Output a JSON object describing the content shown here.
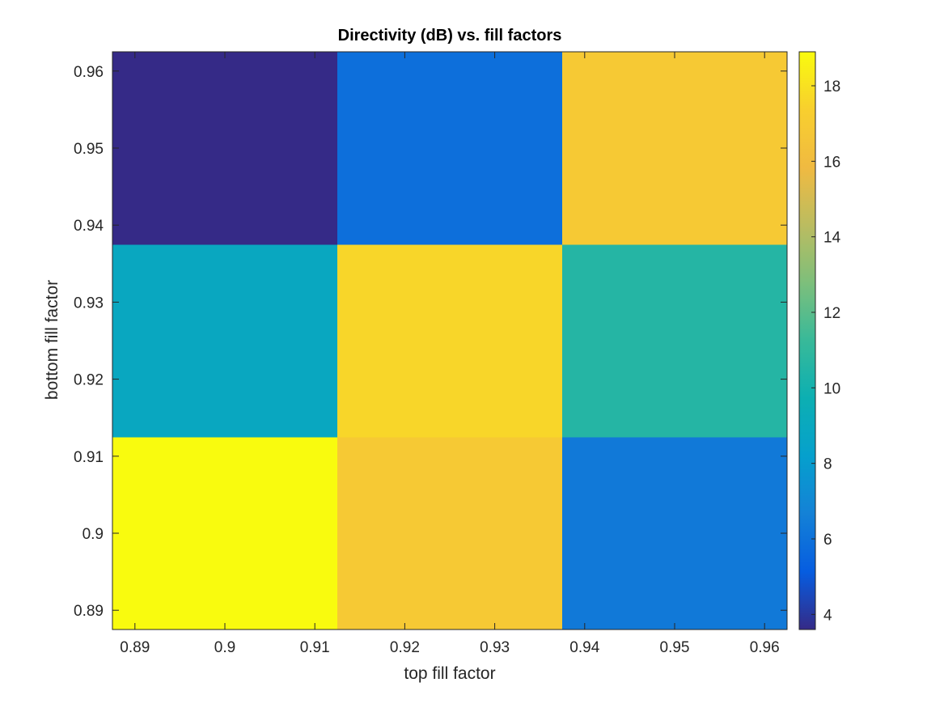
{
  "chart_data": {
    "type": "heatmap",
    "title": "Directivity (dB) vs. fill factors",
    "xlabel": "top fill factor",
    "ylabel": "bottom fill factor",
    "x": [
      0.9,
      0.925,
      0.95
    ],
    "y": [
      0.9,
      0.925,
      0.95
    ],
    "xlim": [
      0.8875,
      0.9625
    ],
    "ylim": [
      0.8875,
      0.9625
    ],
    "xticks": [
      0.89,
      0.9,
      0.91,
      0.92,
      0.93,
      0.94,
      0.95,
      0.96
    ],
    "xtick_labels": [
      "0.89",
      "0.9",
      "0.91",
      "0.92",
      "0.93",
      "0.94",
      "0.95",
      "0.96"
    ],
    "yticks": [
      0.89,
      0.9,
      0.91,
      0.92,
      0.93,
      0.94,
      0.95,
      0.96
    ],
    "ytick_labels": [
      "0.89",
      "0.9",
      "0.91",
      "0.92",
      "0.93",
      "0.94",
      "0.95",
      "0.96"
    ],
    "values": [
      [
        18.9,
        16.9,
        6.3
      ],
      [
        8.9,
        17.6,
        10.6
      ],
      [
        3.6,
        5.9,
        16.9
      ]
    ],
    "colorbar": {
      "colormap": "parula",
      "clim": [
        3.6,
        18.9
      ],
      "ticks": [
        4,
        6,
        8,
        10,
        12,
        14,
        16,
        18
      ],
      "tick_labels": [
        "4",
        "6",
        "8",
        "10",
        "12",
        "14",
        "16",
        "18"
      ]
    },
    "grid": false,
    "legend": "none"
  }
}
